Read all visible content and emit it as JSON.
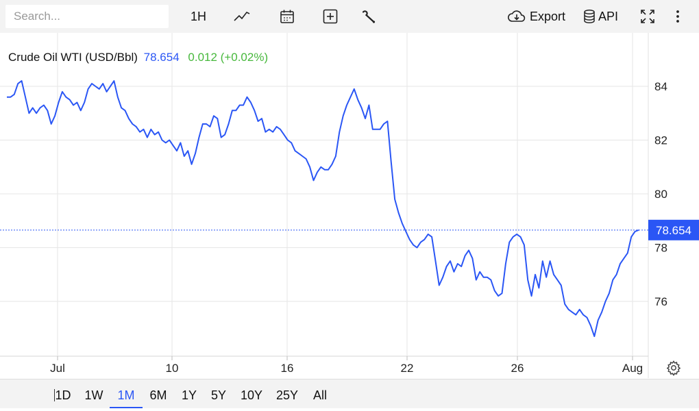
{
  "toolbar": {
    "search_placeholder": "Search...",
    "interval_label": "1H",
    "export_label": "Export",
    "api_label": "API",
    "icons": [
      "line-chart-icon",
      "calendar-icon",
      "add-indicator-icon",
      "wrench-icon",
      "cloud-download-icon",
      "database-icon",
      "fullscreen-icon",
      "more-vertical-icon"
    ]
  },
  "legend": {
    "name": "Crude Oil WTI (USD/Bbl)",
    "price": "78.654",
    "change": "0.012 (+0.02%)"
  },
  "colors": {
    "line": "#2a56f5",
    "positive": "#47b83c",
    "grid": "#e6e6e6"
  },
  "ranges": {
    "items": [
      "1D",
      "1W",
      "1M",
      "6M",
      "1Y",
      "5Y",
      "10Y",
      "25Y",
      "All"
    ],
    "active": "1M"
  },
  "chart_data": {
    "type": "line",
    "title": "Crude Oil WTI (USD/Bbl)",
    "xlabel": "",
    "ylabel": "",
    "x_ticks": [
      "Jul",
      "10",
      "16",
      "22",
      "26",
      "Aug"
    ],
    "y_ticks": [
      76,
      78,
      80,
      82,
      84
    ],
    "ylim": [
      74.0,
      85.5
    ],
    "grid": true,
    "last_price_label": "78.654",
    "series": [
      {
        "values": [
          83.6,
          83.6,
          83.7,
          84.1,
          84.2,
          83.6,
          83.0,
          83.2,
          83.0,
          83.2,
          83.3,
          83.1,
          82.6,
          82.9,
          83.4,
          83.8,
          83.6,
          83.5,
          83.3,
          83.4,
          83.1,
          83.4,
          83.9,
          84.1,
          84.0,
          83.9,
          84.1,
          83.8,
          84.0,
          84.2,
          83.6,
          83.2,
          83.1,
          82.8,
          82.6,
          82.5,
          82.3,
          82.4,
          82.1,
          82.4,
          82.2,
          82.3,
          82.0,
          81.9,
          82.0,
          81.8,
          81.6,
          81.9,
          81.4,
          81.6,
          81.1,
          81.5,
          82.1,
          82.6,
          82.6,
          82.5,
          82.9,
          82.8,
          82.1,
          82.2,
          82.6,
          83.1,
          83.1,
          83.3,
          83.3,
          83.6,
          83.4,
          83.1,
          82.7,
          82.8,
          82.3,
          82.4,
          82.3,
          82.5,
          82.4,
          82.2,
          82.0,
          81.9,
          81.6,
          81.5,
          81.4,
          81.3,
          81.0,
          80.5,
          80.8,
          81.0,
          80.9,
          80.9,
          81.1,
          81.4,
          82.3,
          82.9,
          83.3,
          83.6,
          83.9,
          83.5,
          83.2,
          82.8,
          83.3,
          82.4,
          82.4,
          82.4,
          82.6,
          82.7,
          81.2,
          79.8,
          79.3,
          78.9,
          78.6,
          78.3,
          78.1,
          78.0,
          78.2,
          78.3,
          78.5,
          78.4,
          77.5,
          76.6,
          76.9,
          77.3,
          77.5,
          77.1,
          77.4,
          77.3,
          77.7,
          77.9,
          77.6,
          76.8,
          77.1,
          76.9,
          76.9,
          76.8,
          76.4,
          76.2,
          76.3,
          77.4,
          78.2,
          78.4,
          78.5,
          78.4,
          78.1,
          76.8,
          76.2,
          77.0,
          76.5,
          77.5,
          76.9,
          77.5,
          77.0,
          76.8,
          76.6,
          75.9,
          75.7,
          75.6,
          75.5,
          75.7,
          75.5,
          75.4,
          75.1,
          74.7,
          75.3,
          75.6,
          76.0,
          76.3,
          76.8,
          77.0,
          77.4,
          77.6,
          77.8,
          78.4,
          78.6,
          78.654
        ]
      }
    ]
  }
}
